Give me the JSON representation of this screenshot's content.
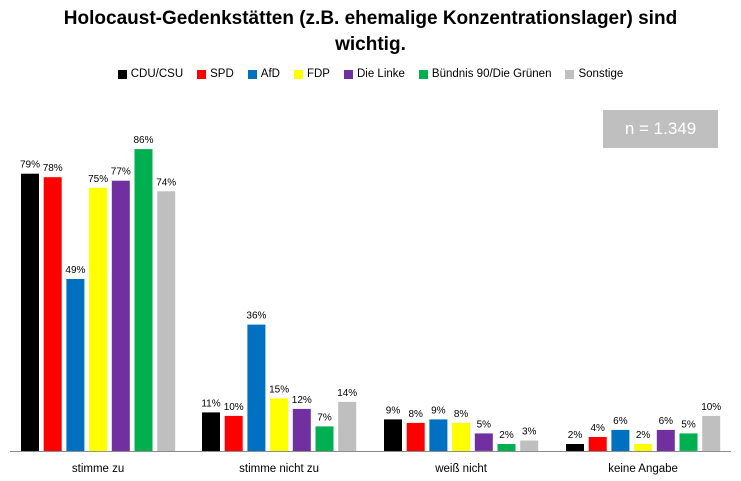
{
  "chart_data": {
    "type": "bar",
    "title_line1": "Holocaust-Gedenkstätten (z.B. ehemalige Konzentrationslager) sind",
    "title_line2": "wichtig.",
    "annotation": "n = 1.349",
    "categories": [
      "stimme zu",
      "stimme nicht zu",
      "weiß nicht",
      "keine Angabe"
    ],
    "series": [
      {
        "name": "CDU/CSU",
        "color": "#000000",
        "values": [
          79,
          11,
          9,
          2
        ],
        "labels": [
          "79%",
          "11%",
          "9%",
          "2%"
        ]
      },
      {
        "name": "SPD",
        "color": "#ff0000",
        "values": [
          78,
          10,
          8,
          4
        ],
        "labels": [
          "78%",
          "10%",
          "8%",
          "4%"
        ]
      },
      {
        "name": "AfD",
        "color": "#0070c0",
        "values": [
          49,
          36,
          9,
          6
        ],
        "labels": [
          "49%",
          "36%",
          "9%",
          "6%"
        ]
      },
      {
        "name": "FDP",
        "color": "#ffff00",
        "values": [
          75,
          15,
          8,
          2
        ],
        "labels": [
          "75%",
          "15%",
          "8%",
          "2%"
        ]
      },
      {
        "name": "Die Linke",
        "color": "#7030a0",
        "values": [
          77,
          12,
          5,
          6
        ],
        "labels": [
          "77%",
          "12%",
          "5%",
          "6%"
        ]
      },
      {
        "name": "Bündnis 90/Die Grünen",
        "color": "#00b050",
        "values": [
          86,
          7,
          2,
          5
        ],
        "labels": [
          "86%",
          "7%",
          "2%",
          "5%"
        ]
      },
      {
        "name": "Sonstige",
        "color": "#bfbfbf",
        "values": [
          74,
          14,
          3,
          10
        ],
        "labels": [
          "74%",
          "14%",
          "3%",
          "10%"
        ]
      }
    ],
    "ylim": [
      0,
      100
    ],
    "grid": false,
    "legend_position": "top"
  }
}
